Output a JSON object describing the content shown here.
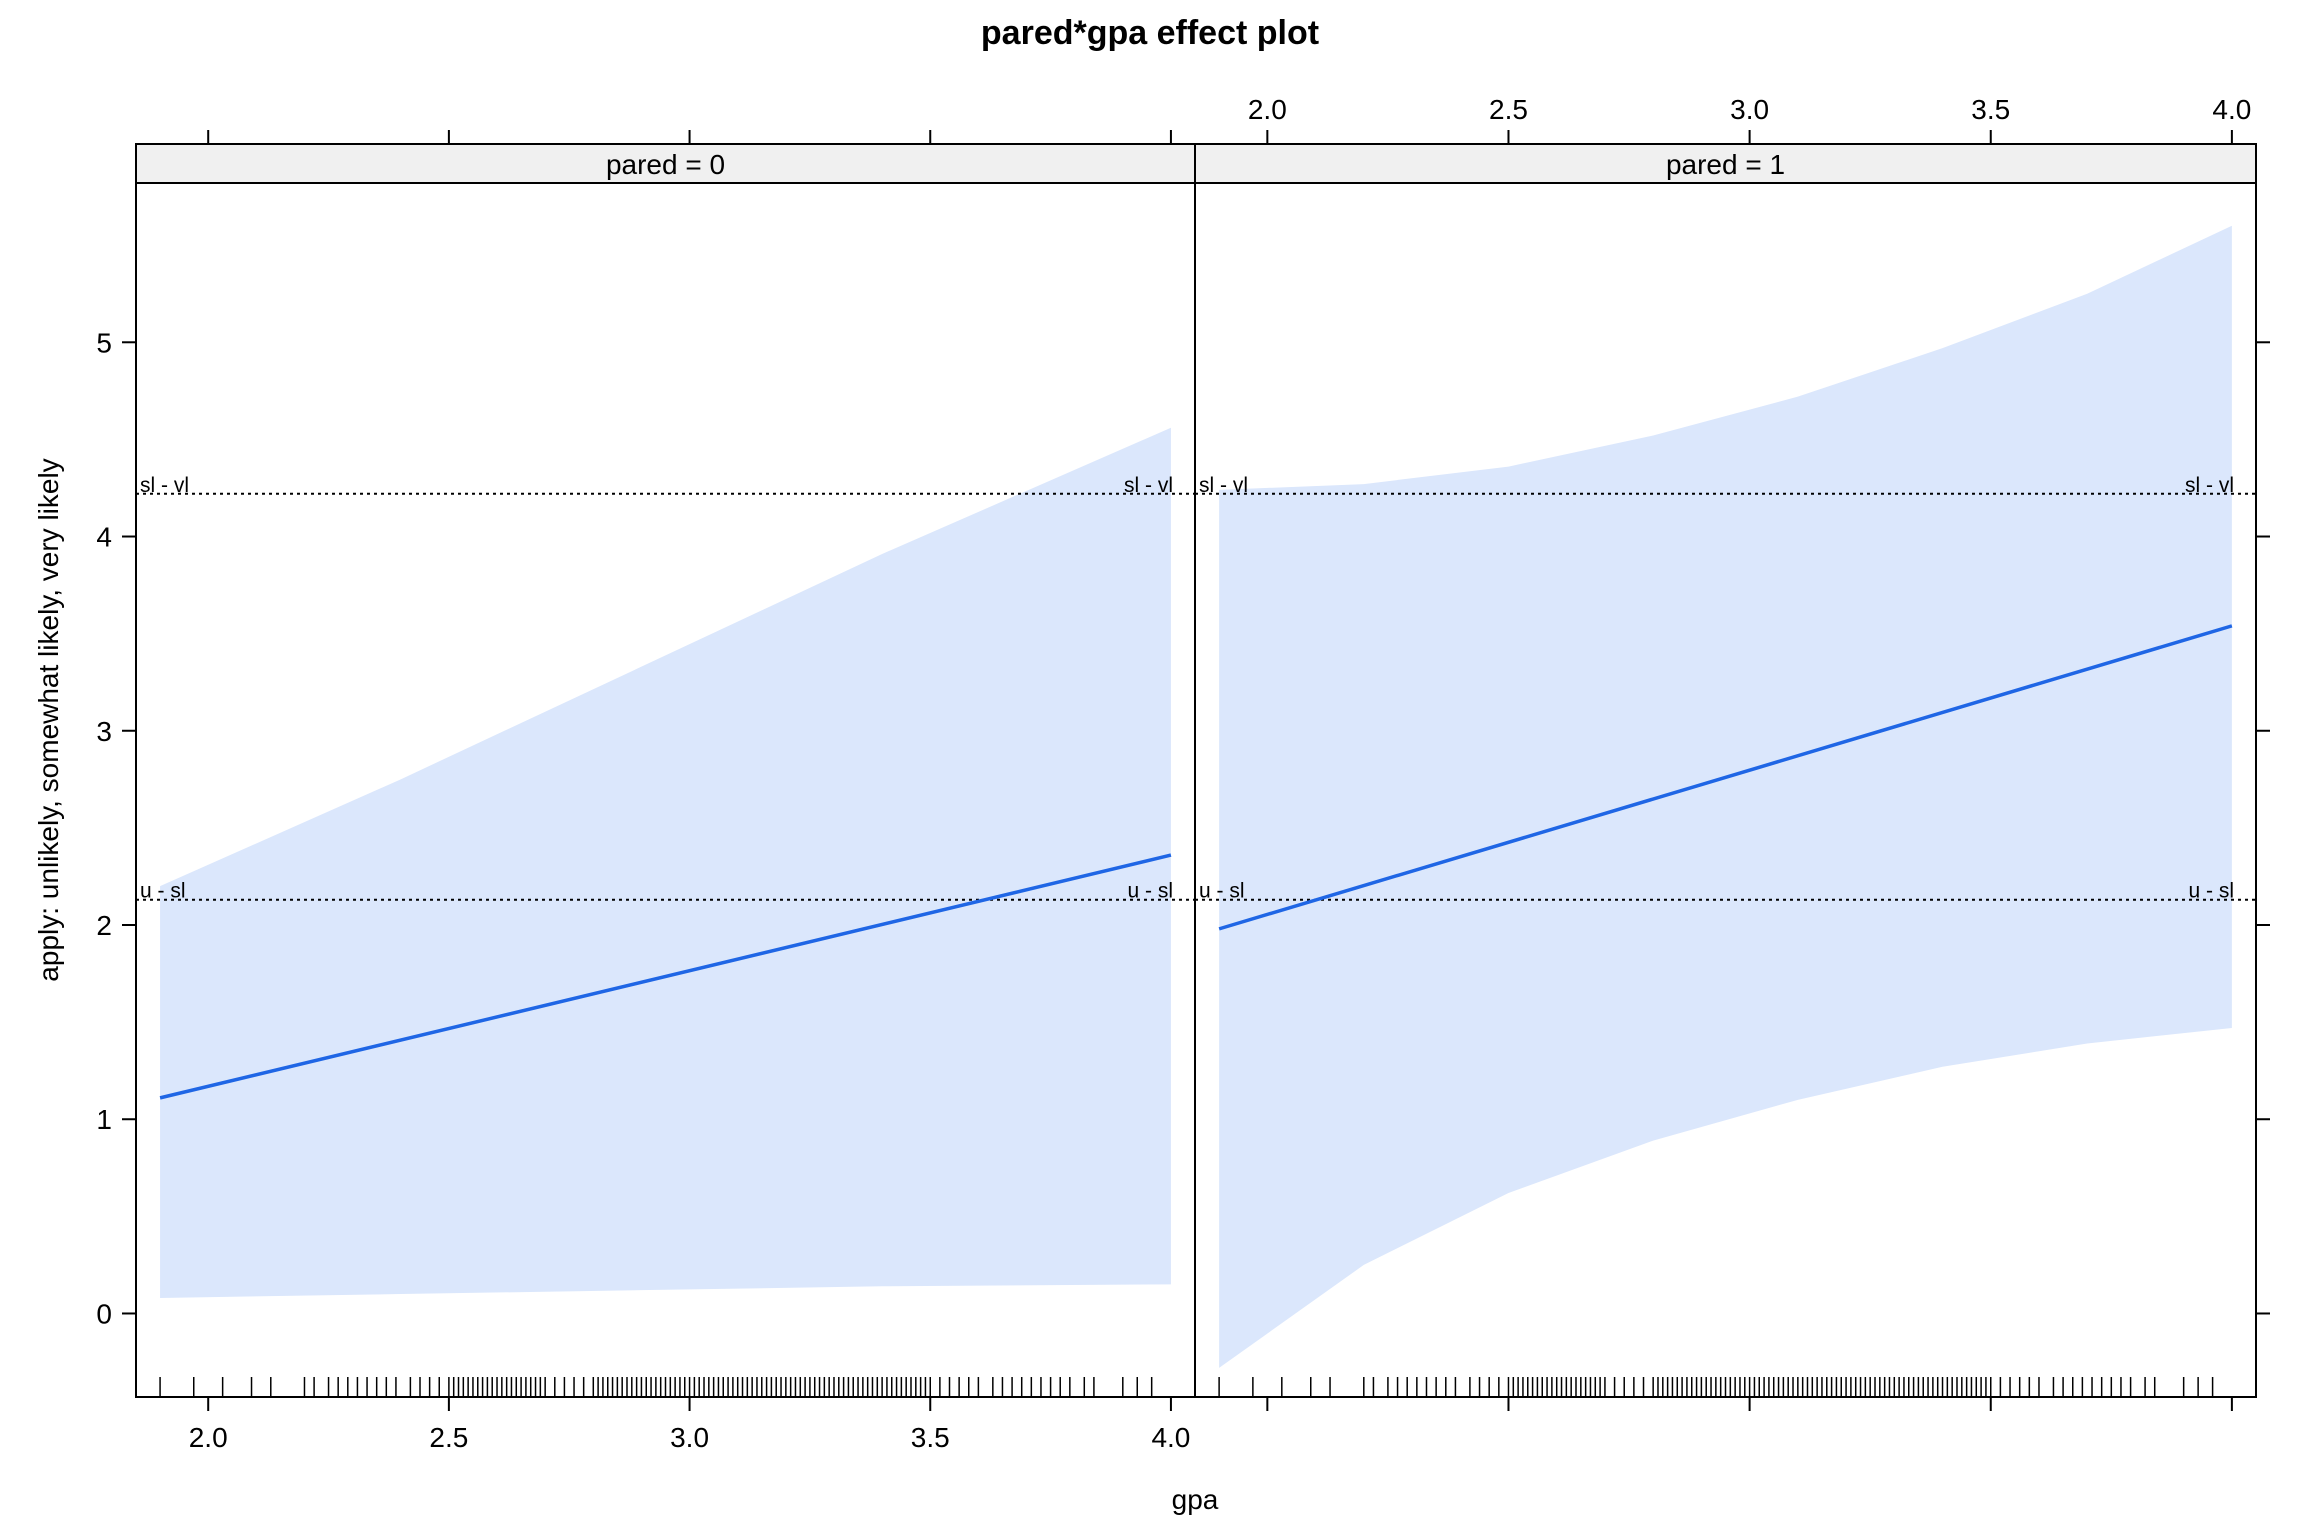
{
  "chart_data": {
    "type": "line",
    "title": "pared*gpa effect plot",
    "xlabel": "gpa",
    "ylabel": "apply: unlikely, somewhat likely, very likely",
    "xlim": [
      1.85,
      4.05
    ],
    "ylim": [
      -0.43,
      5.82
    ],
    "x_ticks": [
      2.0,
      2.5,
      3.0,
      3.5,
      4.0
    ],
    "x_tick_labels": [
      "2.0",
      "2.5",
      "3.0",
      "3.5",
      "4.0"
    ],
    "y_ticks": [
      0,
      1,
      2,
      3,
      4,
      5
    ],
    "y_tick_labels": [
      "0",
      "1",
      "2",
      "3",
      "4",
      "5"
    ],
    "grid": false,
    "legend": "none",
    "colors": {
      "line": "#1f66e5",
      "band": "#dbe7fc",
      "strip": "#f0f0f0",
      "axis": "#000000"
    },
    "thresholds": [
      {
        "label": "u - sl",
        "value": 2.13
      },
      {
        "label": "sl - vl",
        "value": 4.22
      }
    ],
    "panels": [
      {
        "strip": "pared = 0",
        "line": {
          "x": [
            1.9,
            4.0
          ],
          "y": [
            1.11,
            2.36
          ]
        },
        "band": {
          "x": [
            1.9,
            2.4,
            2.9,
            3.4,
            4.0
          ],
          "lower": [
            0.08,
            0.1,
            0.12,
            0.14,
            0.15
          ],
          "upper": [
            2.2,
            2.75,
            3.33,
            3.91,
            4.56
          ]
        }
      },
      {
        "strip": "pared = 1",
        "line": {
          "x": [
            1.9,
            4.0
          ],
          "y": [
            1.98,
            3.54
          ]
        },
        "band": {
          "x": [
            1.9,
            2.2,
            2.5,
            2.8,
            3.1,
            3.4,
            3.7,
            4.0
          ],
          "lower": [
            -0.28,
            0.25,
            0.62,
            0.89,
            1.1,
            1.27,
            1.39,
            1.47
          ],
          "upper": [
            4.24,
            4.27,
            4.36,
            4.52,
            4.72,
            4.97,
            5.25,
            5.6
          ]
        }
      }
    ],
    "rug_x": [
      1.9,
      1.97,
      2.03,
      2.09,
      2.13,
      2.2,
      2.22,
      2.25,
      2.27,
      2.29,
      2.31,
      2.33,
      2.35,
      2.37,
      2.39,
      2.42,
      2.44,
      2.46,
      2.48,
      2.5,
      2.51,
      2.52,
      2.53,
      2.54,
      2.55,
      2.56,
      2.57,
      2.58,
      2.59,
      2.6,
      2.61,
      2.62,
      2.63,
      2.64,
      2.65,
      2.66,
      2.67,
      2.68,
      2.69,
      2.7,
      2.72,
      2.74,
      2.76,
      2.78,
      2.8,
      2.81,
      2.82,
      2.83,
      2.84,
      2.85,
      2.86,
      2.87,
      2.88,
      2.89,
      2.9,
      2.91,
      2.92,
      2.93,
      2.94,
      2.95,
      2.96,
      2.97,
      2.98,
      2.99,
      3.0,
      3.01,
      3.02,
      3.03,
      3.04,
      3.05,
      3.06,
      3.07,
      3.08,
      3.09,
      3.1,
      3.11,
      3.12,
      3.13,
      3.14,
      3.15,
      3.16,
      3.17,
      3.18,
      3.19,
      3.2,
      3.21,
      3.22,
      3.23,
      3.24,
      3.25,
      3.26,
      3.27,
      3.28,
      3.29,
      3.3,
      3.31,
      3.32,
      3.33,
      3.34,
      3.35,
      3.36,
      3.37,
      3.38,
      3.39,
      3.4,
      3.41,
      3.42,
      3.43,
      3.44,
      3.45,
      3.46,
      3.47,
      3.48,
      3.49,
      3.5,
      3.52,
      3.54,
      3.56,
      3.58,
      3.6,
      3.63,
      3.65,
      3.67,
      3.69,
      3.71,
      3.73,
      3.75,
      3.77,
      3.79,
      3.82,
      3.84,
      3.9,
      3.93,
      3.96
    ]
  }
}
